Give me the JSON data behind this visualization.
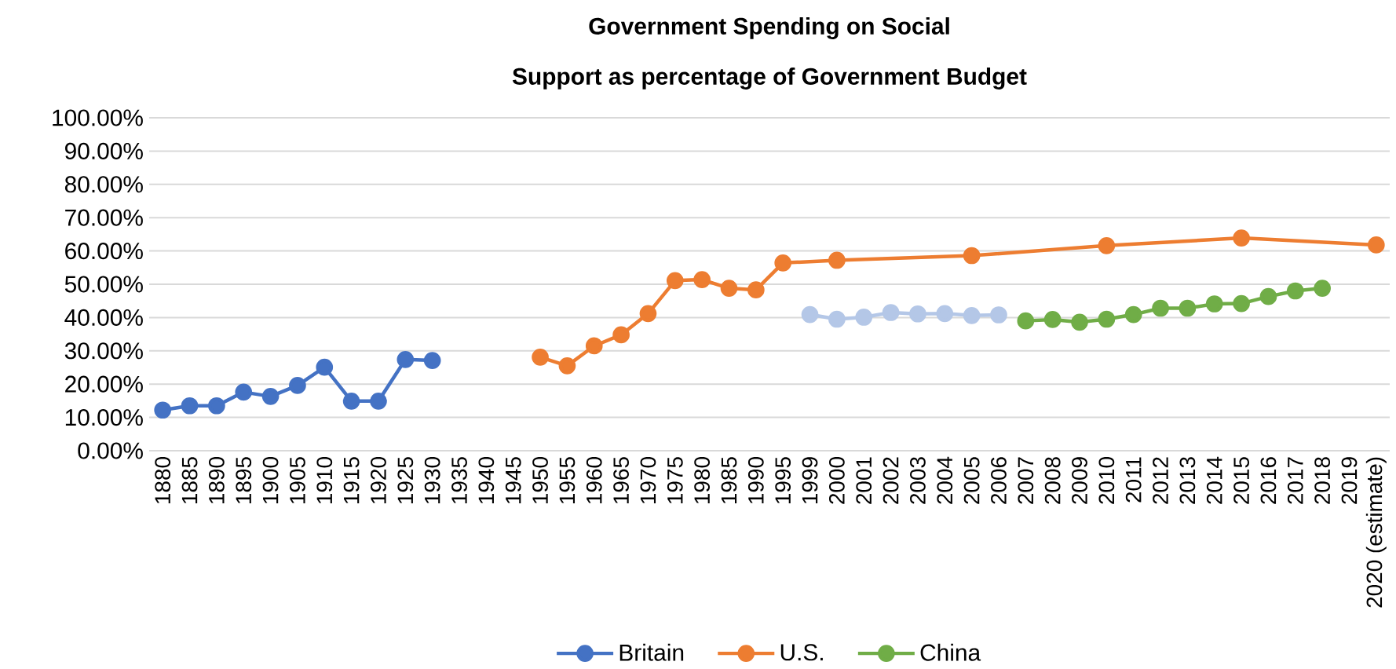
{
  "chart_data": {
    "type": "line",
    "title": "Government Spending on Social",
    "subtitle": "Support as percentage of Government Budget",
    "categories": [
      "1880",
      "1885",
      "1890",
      "1895",
      "1900",
      "1905",
      "1910",
      "1915",
      "1920",
      "1925",
      "1930",
      "1935",
      "1940",
      "1945",
      "1950",
      "1955",
      "1960",
      "1965",
      "1970",
      "1975",
      "1980",
      "1985",
      "1990",
      "1995",
      "1999",
      "2000",
      "2001",
      "2002",
      "2003",
      "2004",
      "2005",
      "2006",
      "2007",
      "2008",
      "2009",
      "2010",
      "2011",
      "2012",
      "2013",
      "2014",
      "2015",
      "2016",
      "2017",
      "2018",
      "2019",
      "2020 (estimate)"
    ],
    "series": [
      {
        "name": "Britain",
        "color": "#4472c4",
        "values": [
          12.2,
          13.5,
          13.5,
          17.6,
          16.3,
          19.6,
          25.1,
          14.9,
          14.9,
          27.4,
          27.1,
          null,
          null,
          null,
          null,
          null,
          null,
          null,
          null,
          null,
          null,
          null,
          null,
          null,
          null,
          null,
          null,
          null,
          null,
          null,
          null,
          null,
          null,
          null,
          null,
          null,
          null,
          null,
          null,
          null,
          null,
          null,
          null,
          null,
          null,
          null
        ]
      },
      {
        "name": "U.S.",
        "color": "#ed7d31",
        "values": [
          null,
          null,
          null,
          null,
          null,
          null,
          null,
          null,
          null,
          null,
          null,
          null,
          null,
          null,
          28.1,
          25.5,
          31.5,
          34.8,
          41.2,
          51.1,
          51.4,
          48.8,
          48.3,
          56.4,
          null,
          57.2,
          null,
          null,
          null,
          null,
          58.6,
          null,
          null,
          null,
          null,
          61.6,
          null,
          null,
          null,
          null,
          63.9,
          null,
          null,
          null,
          null,
          61.8
        ]
      },
      {
        "name": "China",
        "color": "#70ad47",
        "values": [
          null,
          null,
          null,
          null,
          null,
          null,
          null,
          null,
          null,
          null,
          null,
          null,
          null,
          null,
          null,
          null,
          null,
          null,
          null,
          null,
          null,
          null,
          null,
          null,
          null,
          null,
          null,
          null,
          null,
          null,
          null,
          null,
          39.0,
          39.4,
          38.6,
          39.5,
          40.9,
          42.8,
          42.8,
          44.1,
          44.2,
          46.3,
          48.0,
          48.8,
          null,
          null
        ]
      },
      {
        "color": "#b4c7e7",
        "values": [
          null,
          null,
          null,
          null,
          null,
          null,
          null,
          null,
          null,
          null,
          null,
          null,
          null,
          null,
          null,
          null,
          null,
          null,
          null,
          null,
          null,
          null,
          null,
          null,
          40.9,
          39.5,
          40.1,
          41.5,
          41.1,
          41.2,
          40.6,
          40.8,
          null,
          null,
          null,
          null,
          null,
          null,
          null,
          null,
          null,
          null,
          null,
          null,
          null,
          null
        ]
      }
    ],
    "ylim": [
      0,
      100
    ],
    "yticks": [
      {
        "value": 0,
        "label": "0.00%"
      },
      {
        "value": 10,
        "label": "10.00%"
      },
      {
        "value": 20,
        "label": "20.00%"
      },
      {
        "value": 30,
        "label": "30.00%"
      },
      {
        "value": 40,
        "label": "40.00%"
      },
      {
        "value": 50,
        "label": "50.00%"
      },
      {
        "value": 60,
        "label": "60.00%"
      },
      {
        "value": 70,
        "label": "70.00%"
      },
      {
        "value": 80,
        "label": "80.00%"
      },
      {
        "value": 90,
        "label": "90.00%"
      },
      {
        "value": 100,
        "label": "100.00%"
      }
    ],
    "grid": "y",
    "legend": "bottom",
    "marker": "circle",
    "line_style": "solid"
  }
}
